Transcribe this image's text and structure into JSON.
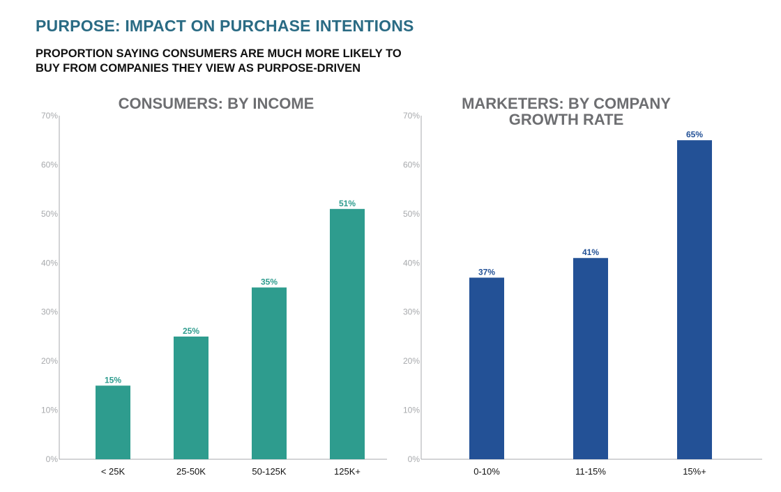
{
  "header": {
    "title": "PURPOSE: IMPACT ON PURCHASE INTENTIONS",
    "subtitle_lines": [
      "PROPORTION SAYING CONSUMERS ARE MUCH MORE LIKELY TO",
      "BUY FROM COMPANIES THEY VIEW AS PURPOSE-DRIVEN"
    ]
  },
  "chart_data": [
    {
      "type": "bar",
      "title_lines": [
        "CONSUMERS: BY INCOME"
      ],
      "categories": [
        "< 25K",
        "25-50K",
        "50-125K",
        "125K+"
      ],
      "values": [
        15,
        25,
        35,
        51
      ],
      "value_labels": [
        "15%",
        "25%",
        "35%",
        "51%"
      ],
      "yticks": [
        "0%",
        "10%",
        "20%",
        "30%",
        "40%",
        "50%",
        "60%",
        "70%"
      ],
      "ylim": [
        0,
        70
      ],
      "xlabel": "",
      "ylabel": "",
      "grid": false,
      "color": "#2e9c8e"
    },
    {
      "type": "bar",
      "title_lines": [
        "MARKETERS: BY COMPANY",
        "GROWTH RATE"
      ],
      "categories": [
        "0-10%",
        "11-15%",
        "15%+"
      ],
      "values": [
        37,
        41,
        65
      ],
      "value_labels": [
        "37%",
        "41%",
        "65%"
      ],
      "yticks": [
        "0%",
        "10%",
        "20%",
        "30%",
        "40%",
        "50%",
        "60%",
        "70%"
      ],
      "ylim": [
        0,
        70
      ],
      "xlabel": "",
      "ylabel": "",
      "grid": false,
      "color": "#235196"
    }
  ]
}
